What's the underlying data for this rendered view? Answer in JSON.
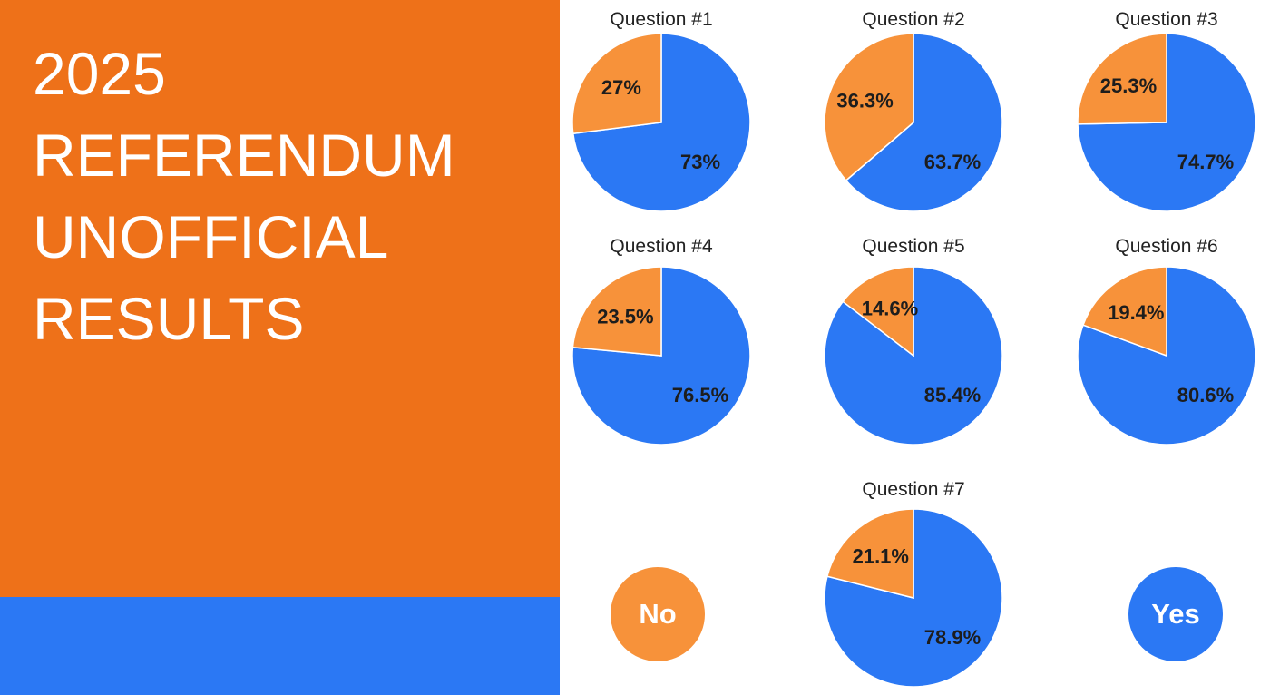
{
  "slide": {
    "title_lines": [
      "2025",
      "REFERENDUM",
      "UNOFFICIAL",
      "RESULTS"
    ]
  },
  "legend": {
    "no_label": "No",
    "yes_label": "Yes"
  },
  "colors": {
    "panel": "#ee7119",
    "bar": "#2b78f4",
    "no": "#f7923a",
    "yes": "#2b78f4"
  },
  "chart_data": [
    {
      "type": "pie",
      "title": "Question #1",
      "categories": [
        "No",
        "Yes"
      ],
      "values": [
        27,
        73
      ],
      "labels": [
        "27%",
        "73%"
      ]
    },
    {
      "type": "pie",
      "title": "Question #2",
      "categories": [
        "No",
        "Yes"
      ],
      "values": [
        36.3,
        63.7
      ],
      "labels": [
        "36.3%",
        "63.7%"
      ]
    },
    {
      "type": "pie",
      "title": "Question #3",
      "categories": [
        "No",
        "Yes"
      ],
      "values": [
        25.3,
        74.7
      ],
      "labels": [
        "25.3%",
        "74.7%"
      ]
    },
    {
      "type": "pie",
      "title": "Question #4",
      "categories": [
        "No",
        "Yes"
      ],
      "values": [
        23.5,
        76.5
      ],
      "labels": [
        "23.5%",
        "76.5%"
      ]
    },
    {
      "type": "pie",
      "title": "Question #5",
      "categories": [
        "No",
        "Yes"
      ],
      "values": [
        14.6,
        85.4
      ],
      "labels": [
        "14.6%",
        "85.4%"
      ]
    },
    {
      "type": "pie",
      "title": "Question #6",
      "categories": [
        "No",
        "Yes"
      ],
      "values": [
        19.4,
        80.6
      ],
      "labels": [
        "19.4%",
        "80.6%"
      ]
    },
    {
      "type": "pie",
      "title": "Question #7",
      "categories": [
        "No",
        "Yes"
      ],
      "values": [
        21.1,
        78.9
      ],
      "labels": [
        "21.1%",
        "78.9%"
      ]
    }
  ]
}
